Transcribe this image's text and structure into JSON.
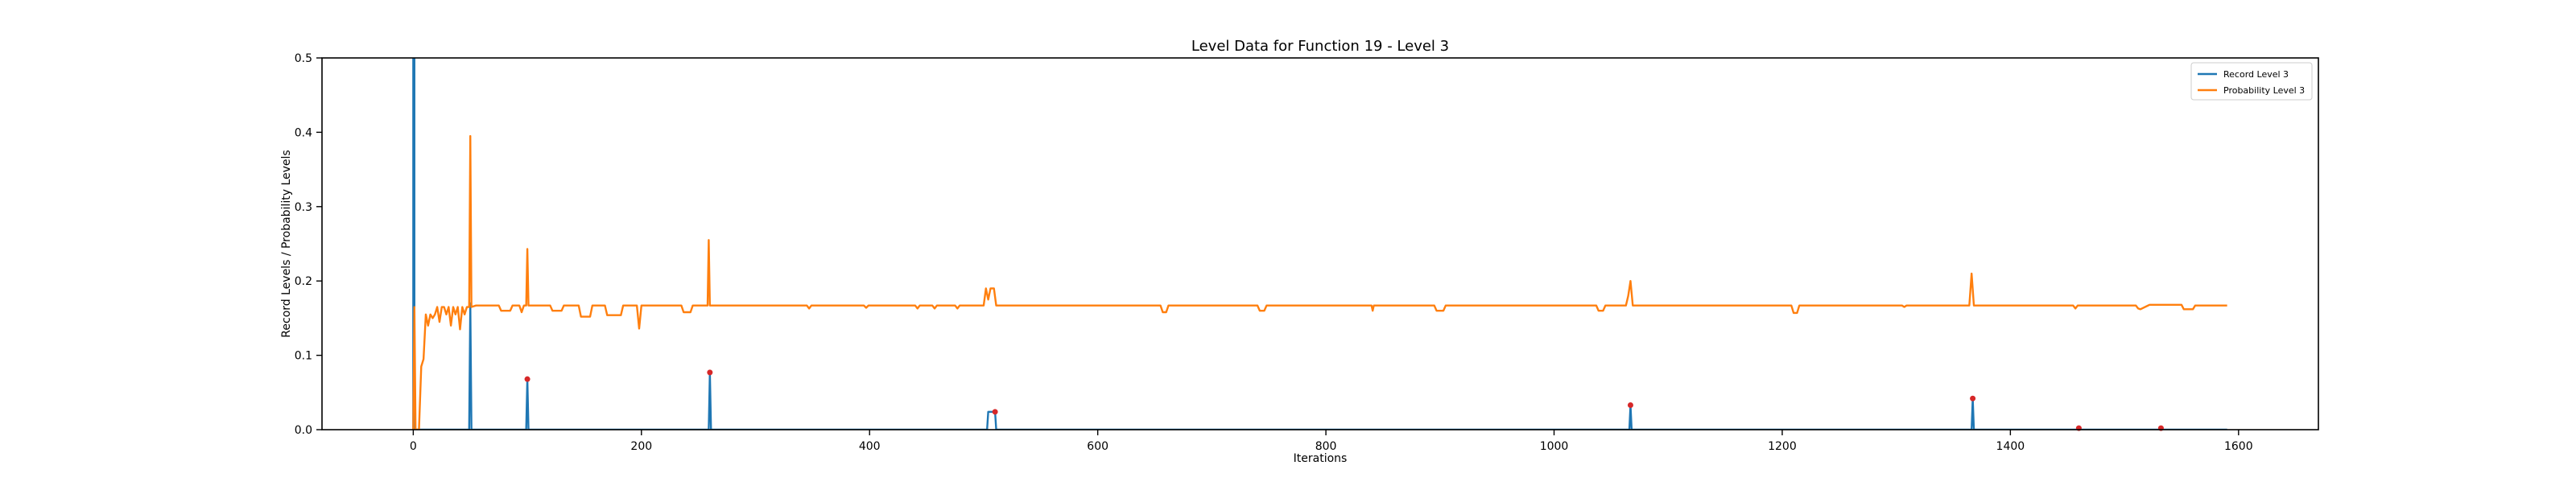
{
  "chart_data": {
    "type": "line",
    "title": "Level Data for Function 19 - Level 3",
    "xlabel": "Iterations",
    "ylabel": "Record Levels / Probability Levels",
    "xlim": [
      -80,
      1670
    ],
    "ylim": [
      0,
      0.5
    ],
    "xticks": [
      0,
      200,
      400,
      600,
      800,
      1000,
      1200,
      1400,
      1600
    ],
    "yticks": [
      0.0,
      0.1,
      0.2,
      0.3,
      0.4,
      0.5
    ],
    "grid": false,
    "legend_position": "top-right",
    "series": [
      {
        "name": "Record Level 3",
        "color": "#1f77b4",
        "points": [
          [
            0,
            0
          ],
          [
            0,
            0.5
          ],
          [
            1,
            0.5
          ],
          [
            1,
            0
          ],
          [
            49,
            0
          ],
          [
            50,
            0.17
          ],
          [
            51,
            0
          ],
          [
            99,
            0
          ],
          [
            100,
            0.068
          ],
          [
            101,
            0
          ],
          [
            259,
            0
          ],
          [
            260,
            0.077
          ],
          [
            261,
            0
          ],
          [
            503,
            0
          ],
          [
            504,
            0.024
          ],
          [
            510,
            0.024
          ],
          [
            511,
            0
          ],
          [
            1066,
            0
          ],
          [
            1067,
            0.033
          ],
          [
            1068,
            0
          ],
          [
            1366,
            0
          ],
          [
            1367,
            0.042
          ],
          [
            1368,
            0
          ],
          [
            1590,
            0
          ]
        ]
      },
      {
        "name": "Probability Level 3",
        "color": "#ff7f0e",
        "points": [
          [
            0,
            0
          ],
          [
            1,
            0.165
          ],
          [
            2,
            0
          ],
          [
            5,
            0
          ],
          [
            7,
            0.085
          ],
          [
            9,
            0.095
          ],
          [
            11,
            0.155
          ],
          [
            13,
            0.14
          ],
          [
            15,
            0.155
          ],
          [
            17,
            0.15
          ],
          [
            19,
            0.155
          ],
          [
            21,
            0.165
          ],
          [
            23,
            0.145
          ],
          [
            25,
            0.165
          ],
          [
            27,
            0.165
          ],
          [
            29,
            0.155
          ],
          [
            31,
            0.165
          ],
          [
            33,
            0.14
          ],
          [
            35,
            0.165
          ],
          [
            37,
            0.155
          ],
          [
            39,
            0.165
          ],
          [
            41,
            0.135
          ],
          [
            43,
            0.165
          ],
          [
            45,
            0.155
          ],
          [
            47,
            0.165
          ],
          [
            49,
            0.165
          ],
          [
            50,
            0.395
          ],
          [
            51,
            0.165
          ],
          [
            55,
            0.167
          ],
          [
            75,
            0.167
          ],
          [
            77,
            0.16
          ],
          [
            85,
            0.16
          ],
          [
            87,
            0.167
          ],
          [
            93,
            0.167
          ],
          [
            95,
            0.158
          ],
          [
            97,
            0.167
          ],
          [
            99,
            0.167
          ],
          [
            100,
            0.243
          ],
          [
            101,
            0.167
          ],
          [
            120,
            0.167
          ],
          [
            122,
            0.16
          ],
          [
            130,
            0.16
          ],
          [
            132,
            0.167
          ],
          [
            145,
            0.167
          ],
          [
            147,
            0.152
          ],
          [
            155,
            0.152
          ],
          [
            157,
            0.167
          ],
          [
            168,
            0.167
          ],
          [
            170,
            0.154
          ],
          [
            182,
            0.154
          ],
          [
            184,
            0.167
          ],
          [
            196,
            0.167
          ],
          [
            198,
            0.136
          ],
          [
            200,
            0.167
          ],
          [
            235,
            0.167
          ],
          [
            237,
            0.158
          ],
          [
            243,
            0.158
          ],
          [
            245,
            0.167
          ],
          [
            258,
            0.167
          ],
          [
            259,
            0.255
          ],
          [
            260,
            0.167
          ],
          [
            345,
            0.167
          ],
          [
            347,
            0.163
          ],
          [
            349,
            0.167
          ],
          [
            395,
            0.167
          ],
          [
            397,
            0.164
          ],
          [
            399,
            0.167
          ],
          [
            440,
            0.167
          ],
          [
            442,
            0.163
          ],
          [
            444,
            0.167
          ],
          [
            455,
            0.167
          ],
          [
            457,
            0.163
          ],
          [
            459,
            0.167
          ],
          [
            475,
            0.167
          ],
          [
            477,
            0.163
          ],
          [
            479,
            0.167
          ],
          [
            500,
            0.167
          ],
          [
            502,
            0.19
          ],
          [
            504,
            0.175
          ],
          [
            506,
            0.19
          ],
          [
            509,
            0.19
          ],
          [
            511,
            0.167
          ],
          [
            655,
            0.167
          ],
          [
            657,
            0.158
          ],
          [
            660,
            0.158
          ],
          [
            662,
            0.167
          ],
          [
            740,
            0.167
          ],
          [
            742,
            0.16
          ],
          [
            746,
            0.16
          ],
          [
            748,
            0.167
          ],
          [
            840,
            0.167
          ],
          [
            841,
            0.16
          ],
          [
            842,
            0.167
          ],
          [
            895,
            0.167
          ],
          [
            897,
            0.16
          ],
          [
            903,
            0.16
          ],
          [
            905,
            0.167
          ],
          [
            1037,
            0.167
          ],
          [
            1039,
            0.16
          ],
          [
            1043,
            0.16
          ],
          [
            1045,
            0.167
          ],
          [
            1063,
            0.167
          ],
          [
            1065,
            0.18
          ],
          [
            1067,
            0.2
          ],
          [
            1069,
            0.167
          ],
          [
            1208,
            0.167
          ],
          [
            1210,
            0.157
          ],
          [
            1213,
            0.157
          ],
          [
            1215,
            0.167
          ],
          [
            1305,
            0.167
          ],
          [
            1307,
            0.165
          ],
          [
            1309,
            0.167
          ],
          [
            1364,
            0.167
          ],
          [
            1366,
            0.21
          ],
          [
            1368,
            0.167
          ],
          [
            1455,
            0.167
          ],
          [
            1457,
            0.163
          ],
          [
            1459,
            0.167
          ],
          [
            1510,
            0.167
          ],
          [
            1512,
            0.163
          ],
          [
            1514,
            0.162
          ],
          [
            1522,
            0.168
          ],
          [
            1550,
            0.168
          ],
          [
            1552,
            0.162
          ],
          [
            1560,
            0.162
          ],
          [
            1562,
            0.167
          ],
          [
            1590,
            0.167
          ]
        ]
      }
    ],
    "markers": {
      "color": "#d62728",
      "points": [
        [
          100,
          0.068
        ],
        [
          260,
          0.077
        ],
        [
          510,
          0.024
        ],
        [
          1067,
          0.033
        ],
        [
          1367,
          0.042
        ],
        [
          1460,
          0.002
        ],
        [
          1532,
          0.002
        ]
      ]
    }
  }
}
